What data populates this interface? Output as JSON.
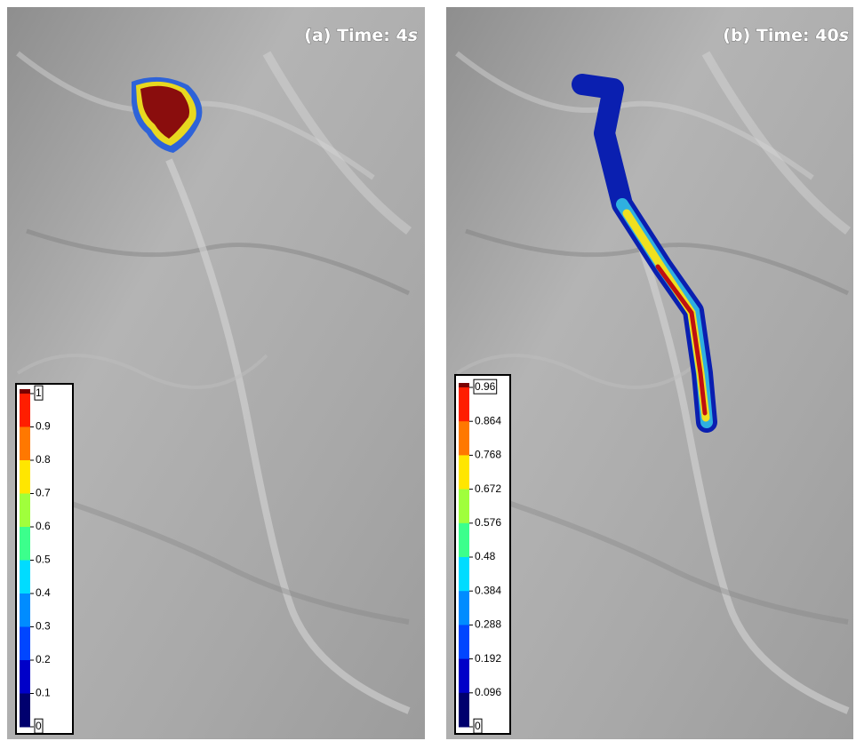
{
  "panels": [
    {
      "label": "(a) Time: ",
      "time": "4",
      "unit": "s",
      "colorbar": [
        1,
        0.9,
        0.8,
        0.7,
        0.6,
        0.5,
        0.4,
        0.3,
        0.2,
        0.1,
        0
      ]
    },
    {
      "label": "(b) Time: ",
      "time": "40",
      "unit": "s",
      "colorbar": [
        0.96,
        0.864,
        0.768,
        0.672,
        0.576,
        0.48,
        0.384,
        0.288,
        0.192,
        0.096,
        0
      ]
    }
  ]
}
